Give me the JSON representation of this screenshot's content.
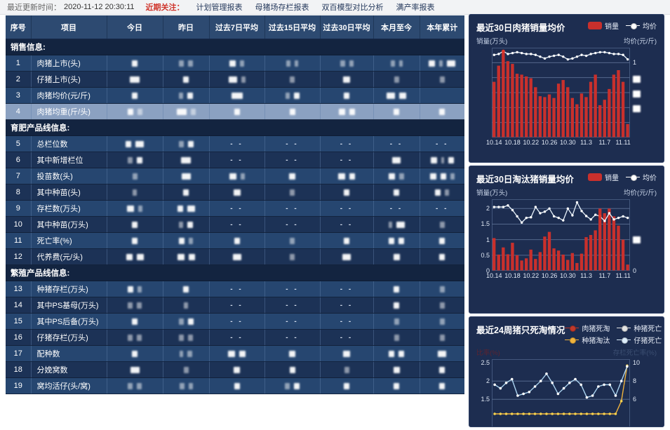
{
  "topbar": {
    "update_label": "最近更新时间：",
    "update_time": "2020-11-12 20:30:11",
    "focus_label": "近期关注：",
    "links": [
      "计划管理报表",
      "母猪场存栏报表",
      "双百模型对比分析",
      "满产率报表"
    ]
  },
  "table": {
    "headers": [
      "序号",
      "项目",
      "今日",
      "昨日",
      "过去7日平均",
      "过去15日平均",
      "过去30日平均",
      "本月至今",
      "本年累计"
    ],
    "dash": "- -",
    "rows": [
      {
        "type": "section",
        "label": "销售信息:"
      },
      {
        "type": "row",
        "num": "1",
        "label": "肉猪上市(头)",
        "cells": [
          "b:8",
          "b:7,7",
          "b:9,6",
          "b:6,5",
          "b:7,6",
          "b:6,5",
          "b:9,5,12"
        ]
      },
      {
        "type": "row",
        "num": "2",
        "label": "仔猪上市(头)",
        "cells": [
          "b:14",
          "b:8",
          "b:12,6",
          "b:7",
          "b:10",
          "b:7",
          "b:7"
        ]
      },
      {
        "type": "row",
        "num": "3",
        "label": "肉猪均价(元/斤)",
        "cells": [
          "b:8",
          "b:6,8",
          "b:16",
          "b:6,8",
          "b:8",
          "b:12,10",
          ""
        ]
      },
      {
        "type": "row",
        "num": "4",
        "label": "肉猪均重(斤/头)",
        "highlight": true,
        "cells": [
          "b:8,7",
          "b:14,7",
          "b:8",
          "b:8",
          "b:9,8",
          "b:8",
          "b:8"
        ]
      },
      {
        "type": "section",
        "label": "育肥产品线信息:"
      },
      {
        "type": "row",
        "num": "5",
        "label": "总栏位数",
        "cells": [
          "b:8,12",
          "b:7,8",
          "d",
          "d",
          "d",
          "d",
          "d"
        ]
      },
      {
        "type": "row",
        "num": "6",
        "label": "其中新增栏位",
        "cells": [
          "b:7,8",
          "b:14",
          "d",
          "d",
          "d",
          "b:12",
          "b:9,4,8"
        ]
      },
      {
        "type": "row",
        "num": "7",
        "label": "投苗数(头)",
        "cells": [
          "b:7",
          "b:13",
          "b:10,6",
          "b:9",
          "b:10,8",
          "b:9,7",
          "b:9,8,6"
        ]
      },
      {
        "type": "row",
        "num": "8",
        "label": "其中种苗(头)",
        "cells": [
          "b:6",
          "b:8",
          "b:10",
          "b:7",
          "b:8",
          "b:8",
          "b:8,6"
        ]
      },
      {
        "type": "row",
        "num": "9",
        "label": "存栏数(万头)",
        "cells": [
          "b:10,6",
          "b:8,11",
          "d",
          "d",
          "d",
          "d",
          "d"
        ]
      },
      {
        "type": "row",
        "num": "10",
        "label": "其中种苗(万头)",
        "cells": [
          "b:8",
          "b:6,8",
          "d",
          "d",
          "d",
          "b:5,12",
          "b:7"
        ]
      },
      {
        "type": "row",
        "num": "11",
        "label": "死亡率(%)",
        "cells": [
          "b:8",
          "b:8,6",
          "b:8",
          "b:7",
          "b:8",
          "b:8,8",
          "b:8"
        ]
      },
      {
        "type": "row",
        "num": "12",
        "label": "代养费(元/头)",
        "cells": [
          "b:9,10",
          "b:10,9",
          "b:12",
          "b:7",
          "b:12",
          "b:9",
          "b:8"
        ]
      },
      {
        "type": "section",
        "label": "繁殖产品线信息:"
      },
      {
        "type": "row",
        "num": "13",
        "label": "种猪存栏(万头)",
        "cells": [
          "b:8,6",
          "b:8",
          "d",
          "d",
          "d",
          "b:8",
          "b:7"
        ]
      },
      {
        "type": "row",
        "num": "14",
        "label": "其中PS基母(万头)",
        "cells": [
          "b:7,7",
          "b:6",
          "d",
          "d",
          "d",
          "b:8",
          "b:7"
        ]
      },
      {
        "type": "row",
        "num": "15",
        "label": "其中PS后备(万头)",
        "cells": [
          "b:8",
          "b:7,8",
          "d",
          "d",
          "d",
          "b:7",
          "b:7"
        ]
      },
      {
        "type": "row",
        "num": "16",
        "label": "仔猪存栏(万头)",
        "cells": [
          "b:7,7",
          "b:7,7",
          "d",
          "d",
          "d",
          "b:7",
          "b:7"
        ]
      },
      {
        "type": "row",
        "num": "17",
        "label": "配种数",
        "cells": [
          "b:8",
          "b:5,7",
          "b:10,9",
          "b:9",
          "b:10",
          "b:8,8",
          "b:12"
        ]
      },
      {
        "type": "row",
        "num": "18",
        "label": "分娩窝数",
        "cells": [
          "b:13",
          "b:7",
          "b:9",
          "b:8",
          "b:7",
          "b:9",
          "b:8"
        ]
      },
      {
        "type": "row",
        "num": "19",
        "label": "窝均活仔(头/窝)",
        "cells": [
          "b:7,7",
          "b:7,6",
          "b:8",
          "b:7,8",
          "b:8",
          "b:8",
          "b:8"
        ]
      }
    ]
  },
  "colors": {
    "bar_red": "#c9302c",
    "line_white": "#e9f3fc",
    "highlight_dot": "#e0392c",
    "grid": "#54688c",
    "plot_border": "#43577c",
    "orange": "#f0b33c",
    "light_blue": "#a9d2ef",
    "silver": "#e2e2e2",
    "legend_red": "#c0392b"
  },
  "chart_data": [
    {
      "type": "bar",
      "title": "最近30日肉猪销量均价",
      "legend": [
        {
          "label": "销量",
          "marker": "rect",
          "color": "#c9302c"
        },
        {
          "label": "均价",
          "marker": "line-dot",
          "color": "#ffffff"
        }
      ],
      "ylabel_left": "销量(万头)",
      "ylabel_right": "均价(元/斤)",
      "x": [
        "10.14",
        "10.15",
        "10.16",
        "10.17",
        "10.18",
        "10.19",
        "10.20",
        "10.21",
        "10.22",
        "10.23",
        "10.24",
        "10.25",
        "10.26",
        "10.27",
        "10.28",
        "10.29",
        "10.30",
        "10.31",
        "11.1",
        "11.2",
        "11.3",
        "11.4",
        "11.5",
        "11.6",
        "11.7",
        "11.8",
        "11.9",
        "11.10",
        "11.11",
        "11.12"
      ],
      "x_shown": [
        "10.14",
        "10.18",
        "10.22",
        "10.26",
        "10.30",
        "11.3",
        "11.7",
        "11.11"
      ],
      "ylim": [
        0,
        1
      ],
      "right_ticks_visible": [
        "1"
      ],
      "right_ticks_redacted": 3,
      "series": [
        {
          "name": "销量",
          "type": "bar",
          "values": [
            0.62,
            0.8,
            0.95,
            0.85,
            0.82,
            0.71,
            0.7,
            0.68,
            0.66,
            0.56,
            0.46,
            0.45,
            0.48,
            0.44,
            0.6,
            0.64,
            0.56,
            0.44,
            0.37,
            0.49,
            0.45,
            0.62,
            0.7,
            0.36,
            0.42,
            0.54,
            0.7,
            0.75,
            0.62,
            0.15
          ]
        },
        {
          "name": "均价",
          "type": "line",
          "highlight_index": 2,
          "values": [
            0.92,
            0.93,
            0.96,
            0.93,
            0.94,
            0.95,
            0.94,
            0.93,
            0.93,
            0.92,
            0.9,
            0.88,
            0.9,
            0.91,
            0.92,
            0.9,
            0.87,
            0.88,
            0.9,
            0.92,
            0.91,
            0.93,
            0.94,
            0.95,
            0.95,
            0.94,
            0.93,
            0.93,
            0.92,
            0.87
          ]
        }
      ]
    },
    {
      "type": "bar",
      "title": "最近30日淘汰猪销量均价",
      "legend": [
        {
          "label": "销量",
          "marker": "rect",
          "color": "#c9302c"
        },
        {
          "label": "均价",
          "marker": "line-dot",
          "color": "#ffffff"
        }
      ],
      "ylabel_left": "销量(万头)",
      "ylabel_right": "均价(元/斤)",
      "x": [
        "10.14",
        "10.15",
        "10.16",
        "10.17",
        "10.18",
        "10.19",
        "10.20",
        "10.21",
        "10.22",
        "10.23",
        "10.24",
        "10.25",
        "10.26",
        "10.27",
        "10.28",
        "10.29",
        "10.30",
        "10.31",
        "11.1",
        "11.2",
        "11.3",
        "11.4",
        "11.5",
        "11.6",
        "11.7",
        "11.8",
        "11.9",
        "11.10",
        "11.11",
        "11.12"
      ],
      "x_shown": [
        "10.14",
        "10.18",
        "10.22",
        "10.26",
        "10.30",
        "11.3",
        "11.7",
        "11.11"
      ],
      "ylim": [
        0,
        2.3
      ],
      "left_ticks": [
        {
          "v": 2,
          "t": "2"
        },
        {
          "v": 1.5,
          "t": "1.5"
        },
        {
          "v": 1,
          "t": "1"
        },
        {
          "v": 0.5,
          "t": "0.5"
        },
        {
          "v": 0,
          "t": "0"
        }
      ],
      "right_ticks_visible": [
        "0"
      ],
      "series": [
        {
          "name": "销量",
          "type": "bar",
          "values": [
            1.05,
            0.52,
            0.75,
            0.53,
            0.9,
            0.5,
            0.33,
            0.4,
            0.68,
            0.38,
            0.6,
            1.1,
            1.25,
            0.72,
            0.65,
            0.52,
            0.35,
            0.57,
            0.25,
            0.55,
            1.08,
            1.15,
            1.3,
            2.0,
            1.85,
            2.0,
            1.75,
            1.45,
            1.0,
            0.2
          ]
        },
        {
          "name": "均价",
          "type": "line",
          "highlight_index": 23,
          "values": [
            2.05,
            2.05,
            2.05,
            2.1,
            1.95,
            1.75,
            1.55,
            1.7,
            1.72,
            2.05,
            1.85,
            1.9,
            2.0,
            1.75,
            1.7,
            1.62,
            2.0,
            1.78,
            2.2,
            1.92,
            1.76,
            1.65,
            1.8,
            1.75,
            1.6,
            1.85,
            1.65,
            1.7,
            1.75,
            1.7
          ]
        }
      ]
    },
    {
      "type": "line",
      "title": "最近24周猪只死淘情况",
      "legend": [
        {
          "label": "肉猪死淘",
          "marker": "line-dot",
          "color": "#c0392b"
        },
        {
          "label": "种猪死亡",
          "marker": "line-dot",
          "color": "#e2e2e2"
        },
        {
          "label": "种猪淘汰",
          "marker": "line-dot",
          "color": "#f0b33c"
        },
        {
          "label": "仔猪死亡",
          "marker": "line-dot",
          "color": "#dcedfb"
        }
      ],
      "ylabel_left": "比率(%)",
      "ylabel_right": "存栏死亡率(%)",
      "weeks": 24,
      "left_ticks": [
        {
          "v": 2.5,
          "t": "2.5"
        },
        {
          "v": 2,
          "t": "2"
        },
        {
          "v": 1.5,
          "t": "1.5"
        }
      ],
      "right_ticks": [
        {
          "v": 2.5,
          "t": "10"
        },
        {
          "v": 2,
          "t": "8"
        },
        {
          "v": 1.5,
          "t": "6"
        }
      ],
      "series": [
        {
          "name": "仔猪死亡",
          "type": "line",
          "color": "#a9d2ef",
          "values": [
            1.9,
            1.8,
            1.95,
            2.05,
            1.6,
            1.65,
            1.7,
            1.85,
            2.0,
            2.2,
            1.95,
            1.65,
            1.8,
            1.95,
            2.05,
            1.9,
            1.55,
            1.6,
            1.85,
            1.9,
            1.9,
            1.6,
            2.0,
            2.4
          ]
        },
        {
          "name": "种猪淘汰",
          "type": "line",
          "color": "#f0b33c",
          "values": [
            1.1,
            1.1,
            1.1,
            1.1,
            1.1,
            1.1,
            1.1,
            1.1,
            1.1,
            1.1,
            1.1,
            1.1,
            1.1,
            1.1,
            1.1,
            1.1,
            1.1,
            1.1,
            1.1,
            1.1,
            1.1,
            1.1,
            1.45,
            2.42
          ]
        }
      ]
    }
  ]
}
